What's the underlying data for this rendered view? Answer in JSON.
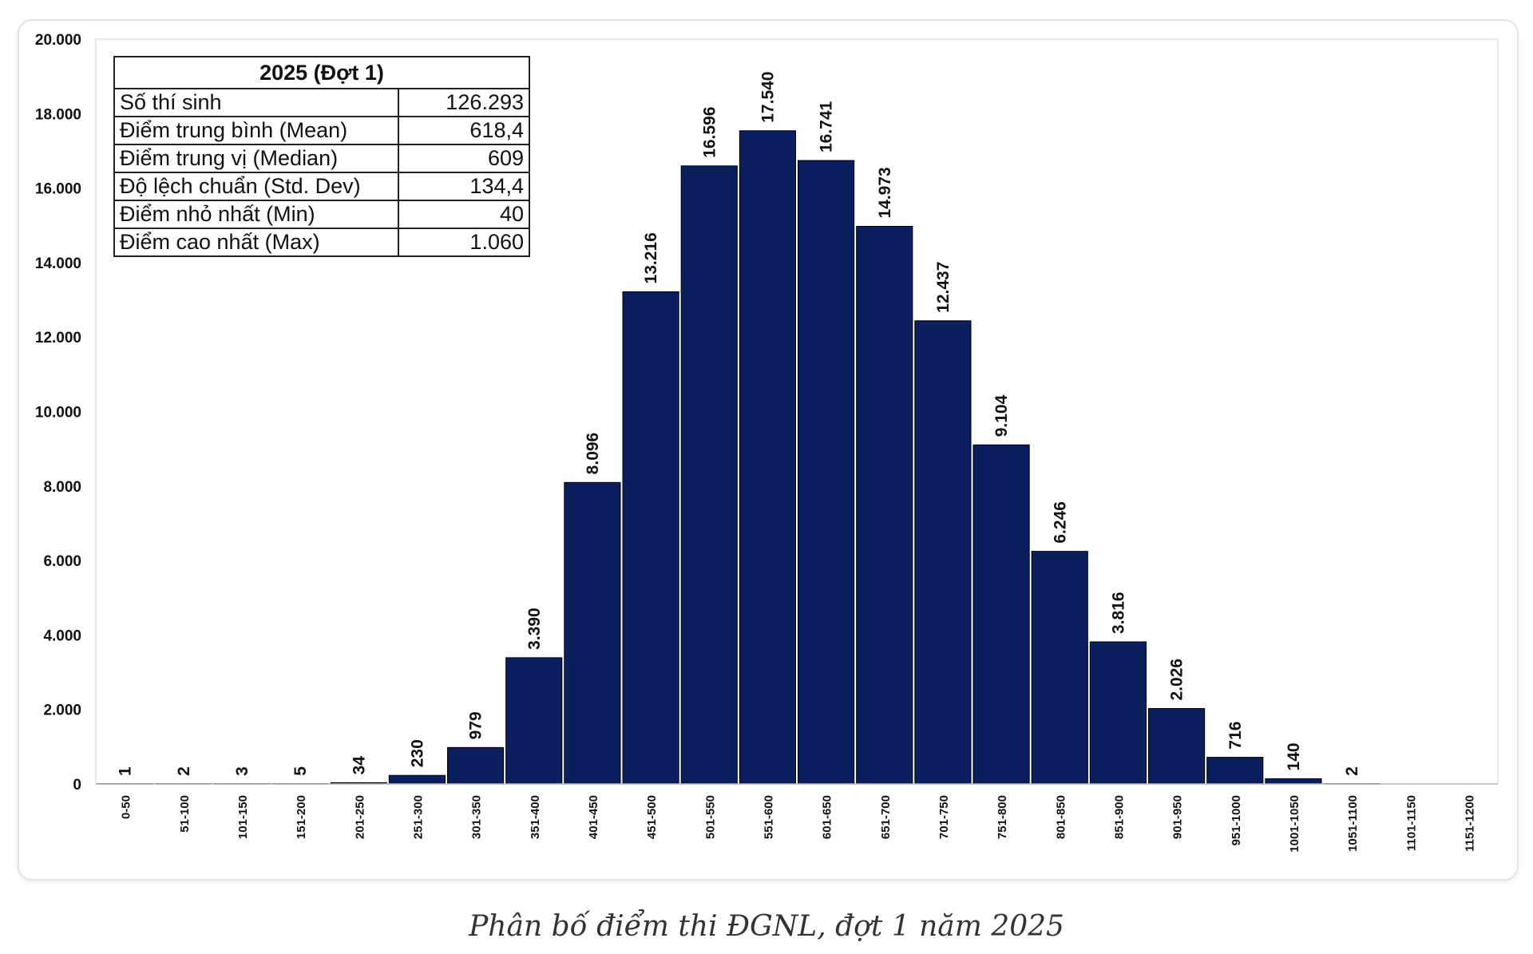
{
  "caption": "Phân bố điểm thi ĐGNL, đợt 1 năm 2025",
  "stats_table": {
    "title": "2025 (Đợt 1)",
    "rows": [
      {
        "label": "Số thí sinh",
        "value": "126.293"
      },
      {
        "label": "Điểm trung bình (Mean)",
        "value": "618,4"
      },
      {
        "label": "Điểm trung vị (Median)",
        "value": "609"
      },
      {
        "label": "Độ lệch chuẩn (Std. Dev)",
        "value": "134,4"
      },
      {
        "label": "Điểm nhỏ nhất (Min)",
        "value": "40"
      },
      {
        "label": "Điểm cao nhất (Max)",
        "value": "1.060"
      }
    ]
  },
  "chart_data": {
    "type": "bar",
    "title": "",
    "xlabel": "",
    "ylabel": "",
    "ylim": [
      0,
      20000
    ],
    "yticks": [
      {
        "value": 0,
        "label": "0"
      },
      {
        "value": 2000,
        "label": "2.000"
      },
      {
        "value": 4000,
        "label": "4.000"
      },
      {
        "value": 6000,
        "label": "6.000"
      },
      {
        "value": 8000,
        "label": "8.000"
      },
      {
        "value": 10000,
        "label": "10.000"
      },
      {
        "value": 12000,
        "label": "12.000"
      },
      {
        "value": 14000,
        "label": "14.000"
      },
      {
        "value": 16000,
        "label": "16.000"
      },
      {
        "value": 18000,
        "label": "18.000"
      },
      {
        "value": 20000,
        "label": "20.000"
      }
    ],
    "categories": [
      "0-50",
      "51-100",
      "101-150",
      "151-200",
      "201-250",
      "251-300",
      "301-350",
      "351-400",
      "401-450",
      "451-500",
      "501-550",
      "551-600",
      "601-650",
      "651-700",
      "701-750",
      "751-800",
      "801-850",
      "851-900",
      "901-950",
      "951-1000",
      "1001-1050",
      "1051-1100",
      "1101-1150",
      "1151-1200"
    ],
    "values": [
      1,
      2,
      3,
      5,
      34,
      230,
      979,
      3390,
      8096,
      13216,
      16596,
      17540,
      16741,
      14973,
      12437,
      9104,
      6246,
      3816,
      2026,
      716,
      140,
      2,
      null,
      null
    ],
    "value_labels": [
      "1",
      "2",
      "3",
      "5",
      "34",
      "230",
      "979",
      "3.390",
      "8.096",
      "13.216",
      "16.596",
      "17.540",
      "16.741",
      "14.973",
      "12.437",
      "9.104",
      "6.246",
      "3.816",
      "2.026",
      "716",
      "140",
      "2",
      "",
      ""
    ],
    "bar_color": "#0b1e5e",
    "grid": false,
    "legend": "none"
  }
}
